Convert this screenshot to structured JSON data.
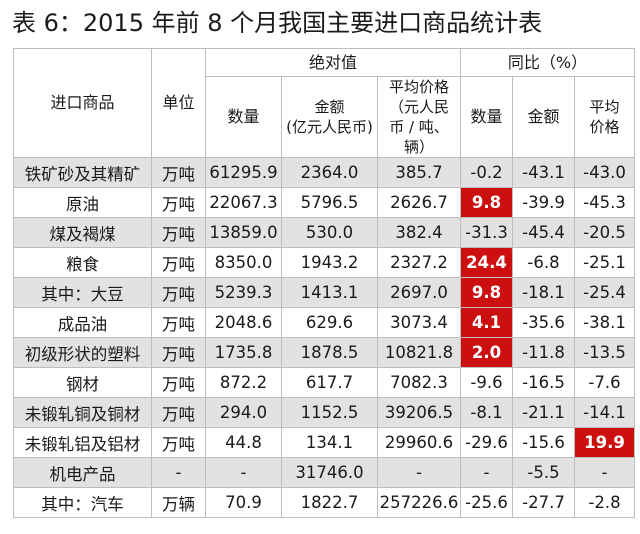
{
  "title": "表 6：2015 年前 8 个月我国主要进口商品统计表",
  "header": {
    "product": "进口商品",
    "unit": "单位",
    "absolute_group": "绝对值",
    "yoy_group": "同比（%）",
    "quantity": "数量",
    "amount_line1": "金额",
    "amount_line2": "(亿元人民币)",
    "avg_price_line1": "平均价格",
    "avg_price_line2": "（元人民",
    "avg_price_line3": "币 / 吨、辆）",
    "yoy_quantity": "数量",
    "yoy_amount": "金额",
    "yoy_avg_line1": "平均",
    "yoy_avg_line2": "价格"
  },
  "rows": [
    {
      "name": "铁矿砂及其精矿",
      "unit": "万吨",
      "qty": "61295.9",
      "amount": "2364.0",
      "price": "385.7",
      "yoy_qty": "-0.2",
      "yoy_amount": "-43.1",
      "yoy_price": "-43.0"
    },
    {
      "name": "原油",
      "unit": "万吨",
      "qty": "22067.3",
      "amount": "5796.5",
      "price": "2626.7",
      "yoy_qty": "9.8",
      "yoy_amount": "-39.9",
      "yoy_price": "-45.3"
    },
    {
      "name": "煤及褐煤",
      "unit": "万吨",
      "qty": "13859.0",
      "amount": "530.0",
      "price": "382.4",
      "yoy_qty": "-31.3",
      "yoy_amount": "-45.4",
      "yoy_price": "-20.5"
    },
    {
      "name": "粮食",
      "unit": "万吨",
      "qty": "8350.0",
      "amount": "1943.2",
      "price": "2327.2",
      "yoy_qty": "24.4",
      "yoy_amount": "-6.8",
      "yoy_price": "-25.1"
    },
    {
      "name": "其中：大豆",
      "unit": "万吨",
      "qty": "5239.3",
      "amount": "1413.1",
      "price": "2697.0",
      "yoy_qty": "9.8",
      "yoy_amount": "-18.1",
      "yoy_price": "-25.4"
    },
    {
      "name": "成品油",
      "unit": "万吨",
      "qty": "2048.6",
      "amount": "629.6",
      "price": "3073.4",
      "yoy_qty": "4.1",
      "yoy_amount": "-35.6",
      "yoy_price": "-38.1"
    },
    {
      "name": "初级形状的塑料",
      "unit": "万吨",
      "qty": "1735.8",
      "amount": "1878.5",
      "price": "10821.8",
      "yoy_qty": "2.0",
      "yoy_amount": "-11.8",
      "yoy_price": "-13.5"
    },
    {
      "name": "钢材",
      "unit": "万吨",
      "qty": "872.2",
      "amount": "617.7",
      "price": "7082.3",
      "yoy_qty": "-9.6",
      "yoy_amount": "-16.5",
      "yoy_price": "-7.6"
    },
    {
      "name": "未锻轧铜及铜材",
      "unit": "万吨",
      "qty": "294.0",
      "amount": "1152.5",
      "price": "39206.5",
      "yoy_qty": "-8.1",
      "yoy_amount": "-21.1",
      "yoy_price": "-14.1"
    },
    {
      "name": "未锻轧铝及铝材",
      "unit": "万吨",
      "qty": "44.8",
      "amount": "134.1",
      "price": "29960.6",
      "yoy_qty": "-29.6",
      "yoy_amount": "-15.6",
      "yoy_price": "19.9"
    },
    {
      "name": "机电产品",
      "unit": "-",
      "qty": "-",
      "amount": "31746.0",
      "price": "-",
      "yoy_qty": "-",
      "yoy_amount": "-5.5",
      "yoy_price": "-"
    },
    {
      "name": "其中：汽车",
      "unit": "万辆",
      "qty": "70.9",
      "amount": "1822.7",
      "price": "257226.6",
      "yoy_qty": "-25.6",
      "yoy_amount": "-27.7",
      "yoy_price": "-2.8"
    }
  ],
  "highlights": {
    "yoy_qty": [
      1,
      3,
      4,
      5,
      6
    ],
    "yoy_price": [
      9
    ]
  },
  "colors": {
    "highlight": "#cc1010",
    "shaded_row": "#e2e2e2",
    "border": "#bdbdbd"
  }
}
